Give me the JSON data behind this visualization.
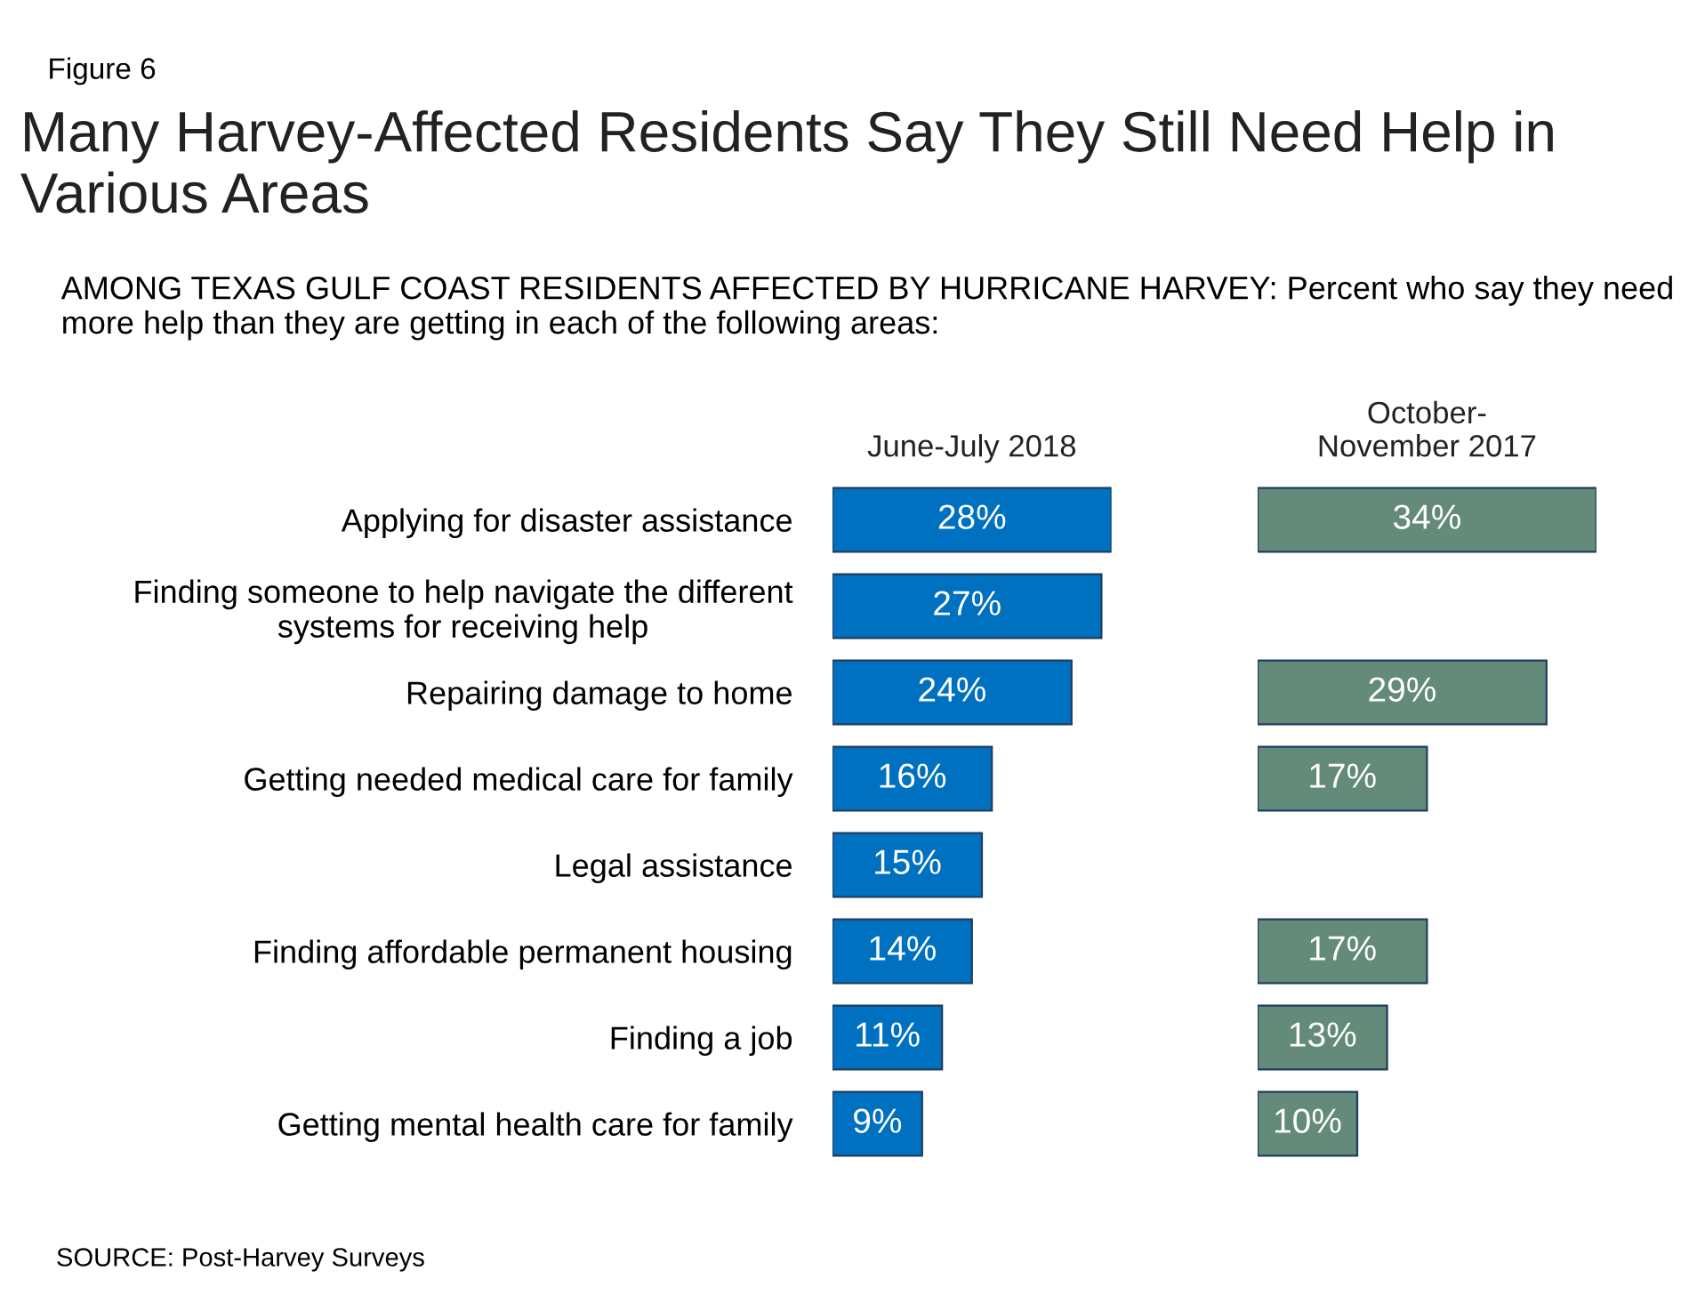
{
  "chart_data": [
    {
      "type": "bar",
      "orientation": "horizontal",
      "title": "June-July 2018",
      "annotations": [
        "Figure 6",
        "Many Harvey-Affected Residents Say They Still Need Help in Various Areas",
        "AMONG TEXAS GULF COAST RESIDENTS AFFECTED BY HURRICANE HARVEY: Percent who say they need more help than they are getting in each of the following areas:",
        "SOURCE: Post-Harvey Surveys"
      ],
      "categories": [
        "Applying for disaster assistance",
        "Finding someone to help navigate the different\nsystems for receiving help",
        "Repairing damage to home",
        "Getting needed medical care for family",
        "Legal assistance",
        "Finding affordable permanent housing",
        "Finding a job",
        "Getting mental health care for family"
      ],
      "values": [
        28,
        27,
        24,
        16,
        15,
        14,
        11,
        9
      ],
      "value_labels": [
        "28%",
        "27%",
        "24%",
        "16%",
        "15%",
        "14%",
        "11%",
        "9%"
      ],
      "color": "#0070c0",
      "tick_labels": "y",
      "grid": false,
      "legend": false
    },
    {
      "type": "bar",
      "orientation": "horizontal",
      "title": "October-\nNovember 2017",
      "categories": [
        null,
        null,
        null,
        null,
        null,
        null,
        null,
        null
      ],
      "values": [
        34,
        null,
        29,
        17,
        null,
        17,
        13,
        10
      ],
      "value_labels": [
        "34%",
        null,
        "29%",
        "17%",
        null,
        "17%",
        "13%",
        "10%"
      ],
      "color": "#648a7a",
      "tick_labels": false,
      "grid": false,
      "legend": false
    }
  ]
}
